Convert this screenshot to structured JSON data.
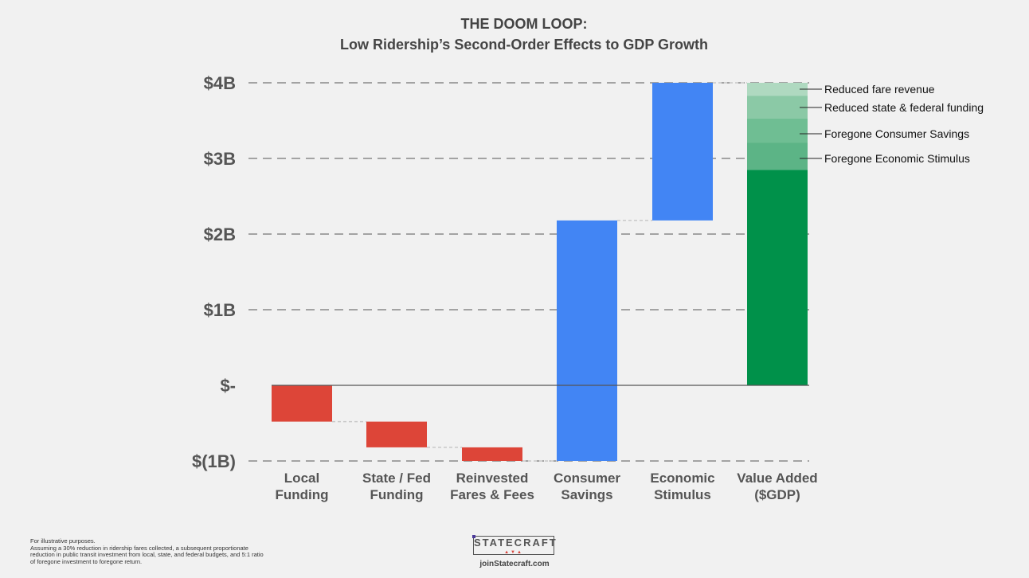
{
  "title_line1": "THE DOOM LOOP:",
  "title_line2": "Low Ridership’s Second-Order Effects to GDP Growth",
  "footnote": {
    "line1": "For illustrative purposes.",
    "line2": "Assuming a 30% reduction in ridership fares collected, a subsequent proportionate reduction in public transit investment from local, state, and federal budgets, and 5:1 ratio of foregone investment to foregone return."
  },
  "logo": {
    "text": "STATECRAFT",
    "marks": "▲▼▲",
    "url": "joinStatecraft.com"
  },
  "colors": {
    "negative": "#dd4538",
    "positive": "#4285f4",
    "total": "#00914a",
    "background": "#f1f1f1"
  },
  "chart_data": {
    "type": "waterfall",
    "title": "THE DOOM LOOP: Low Ridership’s Second-Order Effects to GDP Growth",
    "y_ticks": [
      {
        "value": -1,
        "label": "$(1B)"
      },
      {
        "value": 0,
        "label": "$-"
      },
      {
        "value": 1,
        "label": "$1B"
      },
      {
        "value": 2,
        "label": "$2B"
      },
      {
        "value": 3,
        "label": "$3B"
      },
      {
        "value": 4,
        "label": "$4B"
      }
    ],
    "ylim": [
      -1,
      4
    ],
    "grid": "dashed horizontal",
    "bars": [
      {
        "label_line1": "Local",
        "label_line2": "Funding",
        "start": 0,
        "end": -0.48,
        "kind": "negative"
      },
      {
        "label_line1": "State / Fed",
        "label_line2": "Funding",
        "start": -0.48,
        "end": -0.82,
        "kind": "negative"
      },
      {
        "label_line1": "Reinvested",
        "label_line2": "Fares & Fees",
        "start": -0.82,
        "end": -1.0,
        "kind": "negative"
      },
      {
        "label_line1": "Consumer",
        "label_line2": "Savings",
        "start": -1.0,
        "end": 2.18,
        "kind": "positive"
      },
      {
        "label_line1": "Economic",
        "label_line2": "Stimulus",
        "start": 2.18,
        "end": 4.0,
        "kind": "positive"
      }
    ],
    "total": {
      "label_line1": "Value Added",
      "label_line2": "($GDP)",
      "value": 2.85,
      "stack": [
        {
          "label": "Foregone Economic Stimulus",
          "from": 2.85,
          "to": 3.21,
          "color": "#5cb486"
        },
        {
          "label": "Foregone Consumer Savings",
          "from": 3.21,
          "to": 3.53,
          "color": "#6fbe93"
        },
        {
          "label": "Reduced state & federal funding",
          "from": 3.53,
          "to": 3.83,
          "color": "#8bc9a6"
        },
        {
          "label": "Reduced fare revenue",
          "from": 3.83,
          "to": 4.0,
          "color": "#afd9c0"
        }
      ]
    }
  }
}
